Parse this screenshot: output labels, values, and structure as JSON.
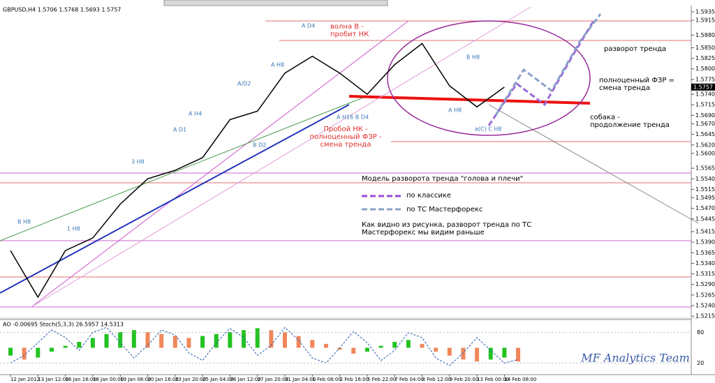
{
  "chart_data": {
    "type": "line",
    "title": "GBPUSD,H4  1.5706 1.5768 1.5693 1.5757",
    "categories": [
      "12 Jan 2012",
      "13 Jan 12:00",
      "16 Jan 16:00",
      "18 Jan 00:00",
      "19 Jan 08:00",
      "20 Jan 16:00",
      "23 Jan 20:00",
      "25 Jan 04:00",
      "26 Jan 12:00",
      "27 Jan 20:00",
      "31 Jan 04:00",
      "1 Feb 08:00",
      "2 Feb 16:00",
      "5 Feb 22:00",
      "7 Feb 04:00",
      "8 Feb 12:00",
      "9 Feb 20:00",
      "13 Feb 00:00",
      "14 Feb 08:00"
    ],
    "values": [
      1.537,
      1.526,
      1.537,
      1.54,
      1.548,
      1.554,
      1.556,
      1.559,
      1.568,
      1.57,
      1.579,
      1.583,
      1.579,
      1.574,
      1.581,
      1.586,
      1.576,
      1.571,
      1.5757
    ],
    "color": "#000000",
    "ylim": [
      1.5207,
      1.5963
    ],
    "yticks": [
      1.5935,
      1.5915,
      {
        "value": 1.588,
        "label": "1.5880"
      },
      {
        "value": 1.585,
        "label": "1.5850"
      },
      1.5825,
      {
        "value": 1.58,
        "label": "1.5800"
      },
      1.5775,
      {
        "value": 1.574,
        "label": "1.5740"
      },
      1.5715,
      {
        "value": 1.569,
        "label": "1.5690"
      },
      {
        "value": 1.567,
        "label": "1.5670"
      },
      1.5645,
      {
        "value": 1.562,
        "label": "1.5620"
      },
      {
        "value": 1.56,
        "label": "1.5600"
      },
      1.5565,
      {
        "value": 1.554,
        "label": "1.5540"
      },
      1.5515,
      1.5495,
      {
        "value": 1.547,
        "label": "1.5470"
      },
      1.5445,
      1.5415,
      {
        "value": 1.539,
        "label": "1.5390"
      },
      1.5365,
      {
        "value": 1.534,
        "label": "1.5340"
      },
      1.5315,
      {
        "value": 1.529,
        "label": "1.5290"
      },
      1.5265,
      {
        "value": 1.524,
        "label": "1.5240"
      },
      1.5215
    ],
    "current_price": 1.5757,
    "annotations": [
      {
        "lines": [
          "волна B -",
          "пробит НК"
        ],
        "color": "#e0302a"
      },
      {
        "lines": [
          "Пробой НК -",
          "полноценный ФЗР -",
          "смена тренда"
        ],
        "color": "#e0302a"
      },
      {
        "lines": [
          "Модель разворота тренда \"голова и плечи\""
        ],
        "color": "#000000"
      },
      {
        "lines": [
          "по классике"
        ],
        "color": "#000000"
      },
      {
        "lines": [
          "по ТС Мастерфорекс"
        ],
        "color": "#000000"
      },
      {
        "lines": [
          "Как видно из рисунка, разворот тренда по ТС",
          "Мастерфорекс мы видим раньше"
        ],
        "color": "#000000"
      },
      {
        "lines": [
          "разворот тренда"
        ],
        "color": "#000000"
      },
      {
        "lines": [
          "полноценный ФЗР =",
          "смена тренда"
        ],
        "color": "#000000"
      },
      {
        "lines": [
          "собака -",
          "продолжение тренда"
        ],
        "color": "#000000"
      }
    ],
    "wave_labels": [
      "A D4",
      "A H8",
      "A/D2",
      "A H4",
      "A D1",
      "3 H8",
      "1 H8",
      "B D2",
      "B H8",
      "A H16 B D4",
      "A H8",
      "B H8",
      "a(C) C H8"
    ],
    "wave_color": "#3a78b8",
    "watermark": "MF Analytics Team",
    "indicator": {
      "title": "AO -0.00695 Stoch(5,3,3) 26.5957 14.5313",
      "ao": [
        -0.004,
        -0.006,
        -0.005,
        -0.002,
        0.001,
        0.003,
        0.005,
        0.007,
        0.008,
        0.009,
        0.008,
        0.007,
        0.006,
        0.005,
        0.006,
        0.007,
        0.008,
        0.009,
        0.01,
        0.009,
        0.008,
        0.006,
        0.004,
        0.002,
        -0.001,
        -0.003,
        -0.002,
        0.001,
        0.003,
        0.004,
        0.002,
        -0.002,
        -0.004,
        -0.006,
        -0.007,
        -0.006,
        -0.005,
        -0.007
      ],
      "ao_ylim": [
        -0.013,
        0.013
      ],
      "up_color": "#22c322",
      "down_color": "#f0875a",
      "stoch": [
        20,
        35,
        60,
        85,
        70,
        45,
        80,
        90,
        60,
        30,
        55,
        85,
        75,
        40,
        25,
        60,
        88,
        70,
        35,
        55,
        90,
        65,
        30,
        20,
        50,
        82,
        60,
        25,
        45,
        80,
        70,
        30,
        15,
        40,
        70,
        45,
        20,
        27
      ],
      "stoch_color": "#2a5fb0",
      "stoch_ylim": [
        0,
        100
      ],
      "stoch_ticks": [
        80,
        20
      ]
    }
  }
}
